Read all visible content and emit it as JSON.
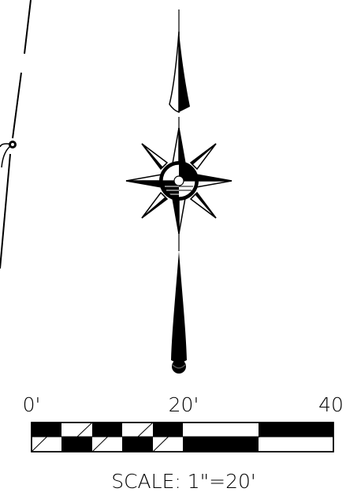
{
  "scale_bar": {
    "tick_labels": [
      "0'",
      "20'",
      "40"
    ],
    "caption": "SCALE:  1\"=20'"
  },
  "colors": {
    "ink": "#000000",
    "paper": "#ffffff",
    "shade": "#555555"
  },
  "icons": {
    "compass": "north-arrow-compass-rose-icon",
    "survey_point": "survey-point-icon"
  }
}
